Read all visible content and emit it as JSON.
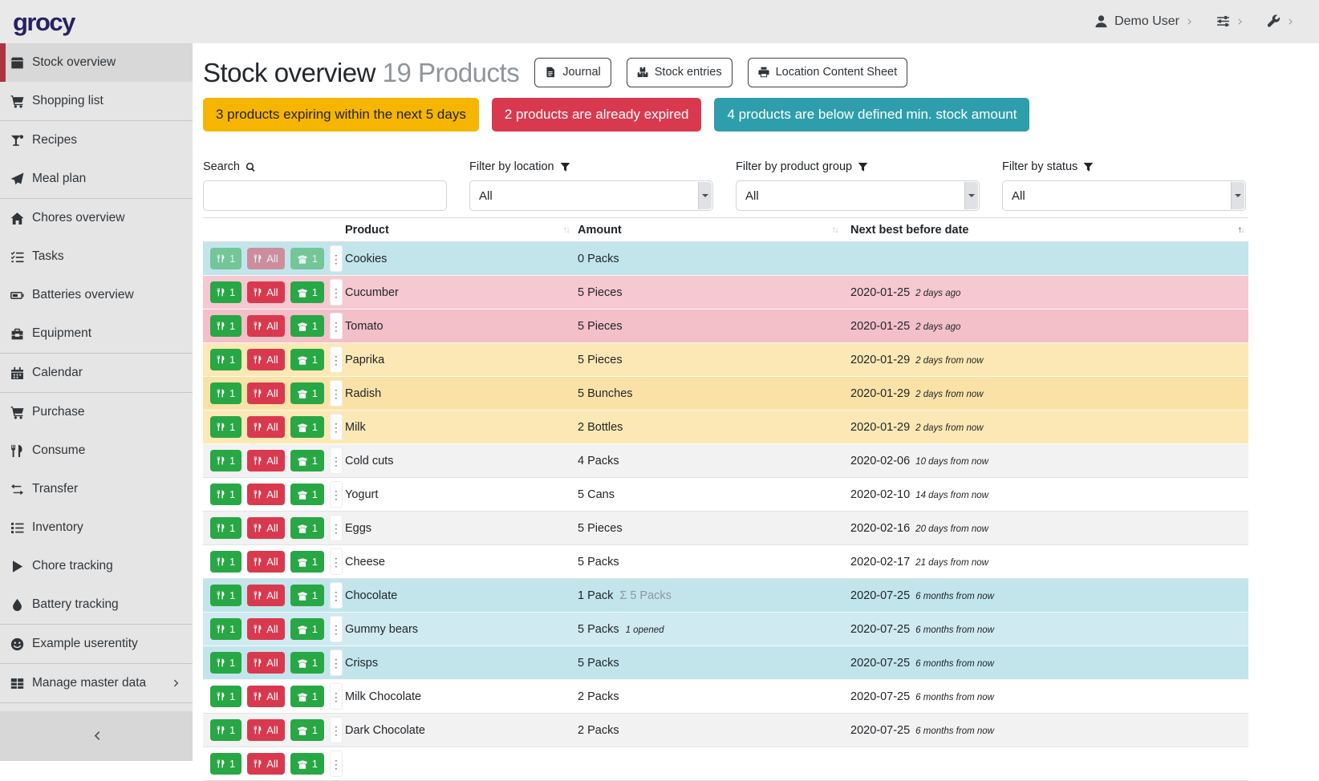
{
  "header": {
    "logo": "grocy",
    "user_menu": {
      "label": "Demo User"
    }
  },
  "sidebar": {
    "collapse_icon": "chevron-left",
    "groups": [
      {
        "items": [
          {
            "icon": "box",
            "label": "Stock overview",
            "active": true
          },
          {
            "icon": "cart",
            "label": "Shopping list"
          }
        ]
      },
      {
        "items": [
          {
            "icon": "cocktail",
            "label": "Recipes"
          },
          {
            "icon": "paper-plane",
            "label": "Meal plan"
          }
        ]
      },
      {
        "items": [
          {
            "icon": "home",
            "label": "Chores overview"
          },
          {
            "icon": "tasks",
            "label": "Tasks"
          },
          {
            "icon": "battery",
            "label": "Batteries overview"
          },
          {
            "icon": "toolbox",
            "label": "Equipment"
          }
        ]
      },
      {
        "items": [
          {
            "icon": "calendar",
            "label": "Calendar"
          }
        ]
      },
      {
        "items": [
          {
            "icon": "cart",
            "label": "Purchase"
          },
          {
            "icon": "utensils",
            "label": "Consume"
          },
          {
            "icon": "exchange",
            "label": "Transfer"
          },
          {
            "icon": "list",
            "label": "Inventory"
          },
          {
            "icon": "play",
            "label": "Chore tracking"
          },
          {
            "icon": "droplet",
            "label": "Battery tracking"
          }
        ]
      },
      {
        "items": [
          {
            "icon": "smile",
            "label": "Example userentity"
          }
        ]
      },
      {
        "items": [
          {
            "icon": "table",
            "label": "Manage master data",
            "submenu": true
          }
        ]
      }
    ]
  },
  "page": {
    "title": "Stock overview",
    "subtitle": "19 Products",
    "toolbar": [
      {
        "icon": "file",
        "label": "Journal"
      },
      {
        "icon": "boxes",
        "label": "Stock entries"
      },
      {
        "icon": "print",
        "label": "Location Content Sheet"
      }
    ],
    "alerts": [
      {
        "text": "3 products expiring within the next 5 days",
        "bg": "#f5b501",
        "fg": "#26221a"
      },
      {
        "text": "2 products are already expired",
        "bg": "#d9394e",
        "fg": "#ffffff"
      },
      {
        "text": "4 products are below defined min. stock amount",
        "bg": "#2e9eac",
        "fg": "#ffffff"
      }
    ],
    "filters": {
      "search": {
        "label": "Search",
        "icon": "search",
        "value": ""
      },
      "location": {
        "label": "Filter by location",
        "icon": "filter",
        "value": "All"
      },
      "product_group": {
        "label": "Filter by product group",
        "icon": "filter",
        "value": "All"
      },
      "status": {
        "label": "Filter by status",
        "icon": "filter",
        "value": "All"
      }
    },
    "table": {
      "columns": [
        "Product",
        "Amount",
        "Next best before date"
      ],
      "row_buttons": {
        "consume_one": "1",
        "consume_all": "All",
        "open_one": "1"
      },
      "status_colors": {
        "belowmin": [
          "#c2e5ec",
          "#cfeaf0"
        ],
        "expired": [
          "#f3bfc9",
          "#f6c8d1"
        ],
        "expiring": [
          "#fae2a7",
          "#fce8b4"
        ],
        "none": [
          "#f2f2f2",
          "#ffffff"
        ]
      },
      "rows": [
        {
          "product": "Cookies",
          "amount": "0 Packs",
          "status": "belowmin",
          "disabled": true,
          "date": "",
          "relative": ""
        },
        {
          "product": "Cucumber",
          "amount": "5 Pieces",
          "status": "expired",
          "date": "2020-01-25",
          "relative": "2 days ago"
        },
        {
          "product": "Tomato",
          "amount": "5 Pieces",
          "status": "expired",
          "date": "2020-01-25",
          "relative": "2 days ago"
        },
        {
          "product": "Paprika",
          "amount": "5 Pieces",
          "status": "expiring",
          "date": "2020-01-29",
          "relative": "2 days from now"
        },
        {
          "product": "Radish",
          "amount": "5 Bunches",
          "status": "expiring",
          "date": "2020-01-29",
          "relative": "2 days from now"
        },
        {
          "product": "Milk",
          "amount": "2 Bottles",
          "status": "expiring",
          "date": "2020-01-29",
          "relative": "2 days from now"
        },
        {
          "product": "Cold cuts",
          "amount": "4 Packs",
          "status": "none",
          "date": "2020-02-06",
          "relative": "10 days from now"
        },
        {
          "product": "Yogurt",
          "amount": "5 Cans",
          "status": "none",
          "date": "2020-02-10",
          "relative": "14 days from now"
        },
        {
          "product": "Eggs",
          "amount": "5 Pieces",
          "status": "none",
          "date": "2020-02-16",
          "relative": "20 days from now"
        },
        {
          "product": "Cheese",
          "amount": "5 Packs",
          "status": "none",
          "date": "2020-02-17",
          "relative": "21 days from now"
        },
        {
          "product": "Chocolate",
          "amount": "1 Pack",
          "sum_amount": "5 Packs",
          "status": "belowmin",
          "date": "2020-07-25",
          "relative": "6 months from now"
        },
        {
          "product": "Gummy bears",
          "amount": "5 Packs",
          "opened_note": "1 opened",
          "status": "belowmin",
          "date": "2020-07-25",
          "relative": "6 months from now"
        },
        {
          "product": "Crisps",
          "amount": "5 Packs",
          "status": "belowmin",
          "date": "2020-07-25",
          "relative": "6 months from now"
        },
        {
          "product": "Milk Chocolate",
          "amount": "2 Packs",
          "status": "none",
          "date": "2020-07-25",
          "relative": "6 months from now"
        },
        {
          "product": "Dark Chocolate",
          "amount": "2 Packs",
          "status": "none",
          "date": "2020-07-25",
          "relative": "6 months from now"
        },
        {
          "product": "",
          "amount": "",
          "status": "none",
          "date": "",
          "relative": "",
          "partial": true
        }
      ]
    }
  },
  "colors": {
    "accent_red": "#ad3342",
    "logo": "#262262",
    "button_green": "#28a745",
    "button_red": "#d9394e"
  }
}
